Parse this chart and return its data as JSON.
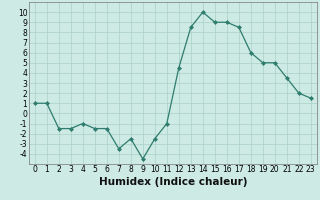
{
  "x": [
    0,
    1,
    2,
    3,
    4,
    5,
    6,
    7,
    8,
    9,
    10,
    11,
    12,
    13,
    14,
    15,
    16,
    17,
    18,
    19,
    20,
    21,
    22,
    23
  ],
  "y": [
    1.0,
    1.0,
    -1.5,
    -1.5,
    -1.0,
    -1.5,
    -1.5,
    -3.5,
    -2.5,
    -4.5,
    -2.5,
    -1.0,
    4.5,
    8.5,
    10.0,
    9.0,
    9.0,
    8.5,
    6.0,
    5.0,
    5.0,
    3.5,
    2.0,
    1.5
  ],
  "xlabel": "Humidex (Indice chaleur)",
  "xlim": [
    -0.5,
    23.5
  ],
  "ylim": [
    -5,
    11
  ],
  "yticks": [
    -4,
    -3,
    -2,
    -1,
    0,
    1,
    2,
    3,
    4,
    5,
    6,
    7,
    8,
    9,
    10
  ],
  "xticks": [
    0,
    1,
    2,
    3,
    4,
    5,
    6,
    7,
    8,
    9,
    10,
    11,
    12,
    13,
    14,
    15,
    16,
    17,
    18,
    19,
    20,
    21,
    22,
    23
  ],
  "line_color": "#2e7d6e",
  "marker_color": "#2e7d6e",
  "bg_color": "#cdeae4",
  "grid_color": "#aacfc8",
  "tick_label_fontsize": 5.5,
  "xlabel_fontsize": 7.5
}
